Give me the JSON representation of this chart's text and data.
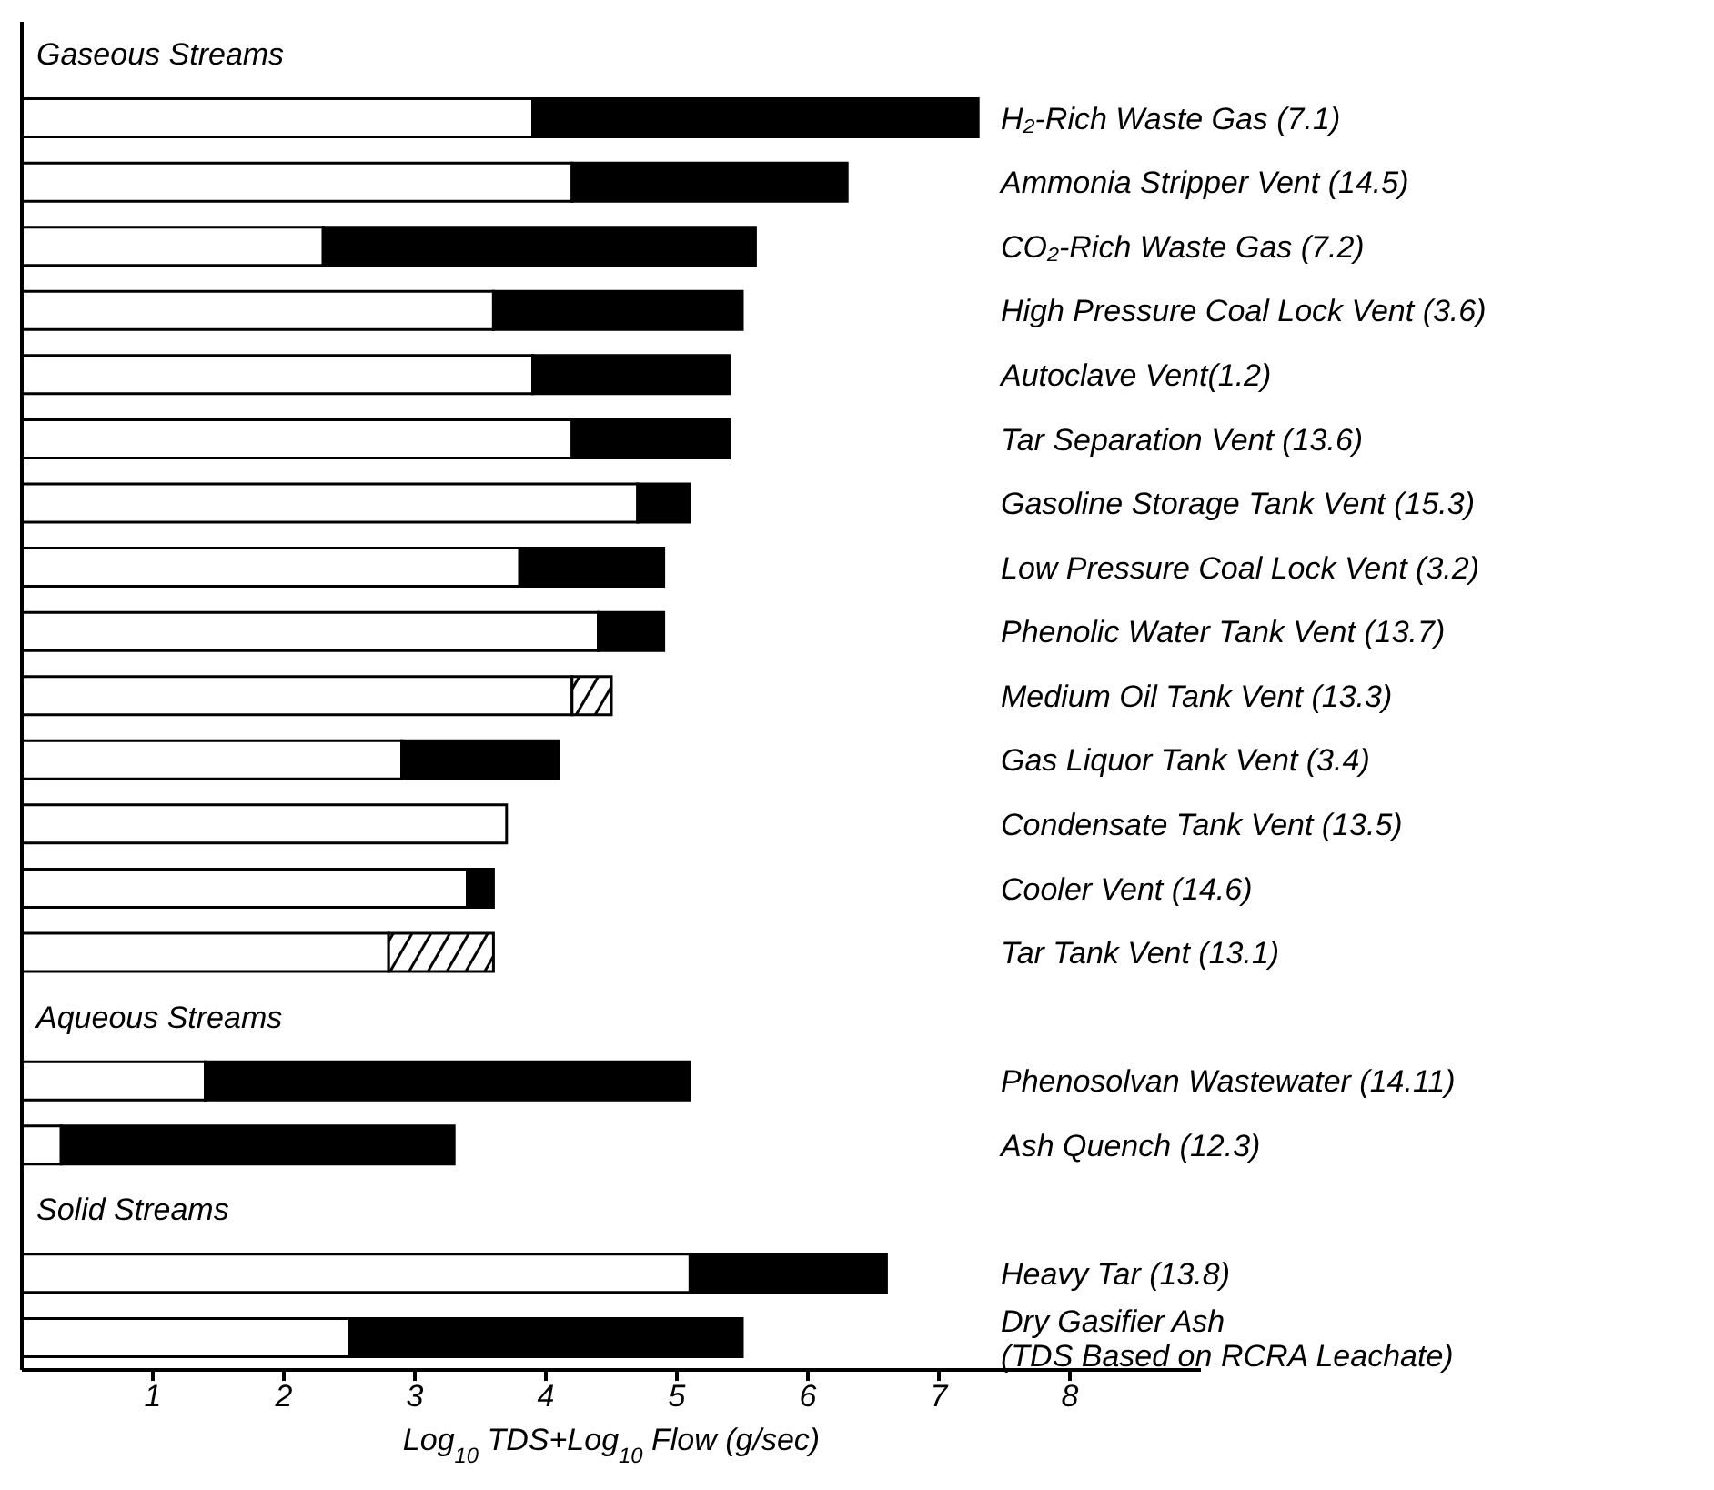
{
  "chart_data": {
    "type": "bar",
    "orientation": "horizontal",
    "stacked": true,
    "xlabel": "Log$_{10}$ TDS+Log$_{10}$ Flow (g/sec)",
    "annotations": [
      "Gaseous Streams",
      "Aqueous Streams",
      "Solid Streams"
    ],
    "categories": [
      null,
      "H₂-Rich Waste Gas (7.1)",
      "Ammonia Stripper Vent (14.5)",
      "CO₂-Rich Waste Gas (7.2)",
      "High Pressure Coal Lock Vent (3.6)",
      "Autoclave Vent(1.2)",
      "Tar Separation Vent (13.6)",
      "Gasoline Storage Tank Vent (15.3)",
      "Low Pressure Coal Lock Vent (3.2)",
      "Phenolic Water Tank Vent (13.7)",
      "Medium Oil Tank Vent (13.3)",
      "Gas Liquor Tank Vent (3.4)",
      "Condensate Tank Vent (13.5)",
      "Cooler Vent (14.6)",
      "Tar Tank Vent (13.1)",
      null,
      "Phenosolvan Wastewater (14.11)",
      "Ash Quench (12.3)",
      null,
      "Heavy Tar (13.8)",
      "Dry Gasifier Ash\n(TDS Based on RCRA Leachate)"
    ],
    "series": [
      {
        "color": "#ffffff",
        "values": [
          null,
          3.9,
          4.2,
          2.3,
          3.6,
          3.9,
          4.2,
          4.7,
          3.8,
          4.4,
          4.2,
          2.9,
          3.7,
          3.4,
          2.8,
          null,
          1.4,
          0.3,
          null,
          5.1,
          2.5
        ]
      },
      {
        "color": "#000000",
        "values": [
          null,
          3.4,
          2.1,
          3.3,
          1.9,
          1.5,
          1.2,
          0.4,
          1.1,
          0.5,
          null,
          1.2,
          null,
          0.2,
          null,
          null,
          3.7,
          3.0,
          null,
          1.5,
          3.0
        ]
      },
      {
        "color": "#000000",
        "values": [
          null,
          null,
          null,
          null,
          null,
          null,
          null,
          null,
          null,
          null,
          0.3,
          null,
          null,
          null,
          0.8,
          null,
          null,
          null,
          null,
          null,
          null
        ]
      }
    ],
    "xlim": [
      0,
      9
    ],
    "xticks": [
      1,
      2,
      3,
      4,
      5,
      6,
      7,
      8
    ]
  }
}
